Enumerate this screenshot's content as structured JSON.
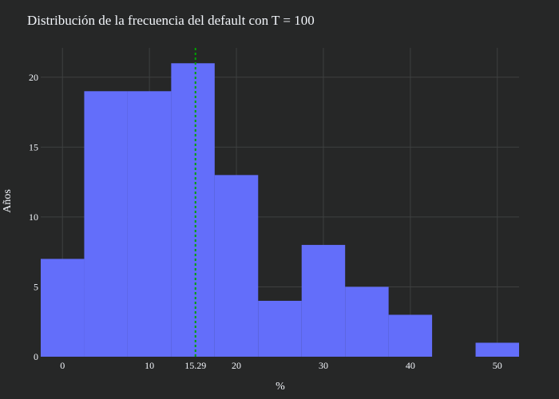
{
  "chart_data": {
    "type": "bar",
    "title": "Distribución de la frecuencia del default con T = 100",
    "xlabel": "%",
    "ylabel": "Años",
    "bin_width": 5,
    "bins": [
      {
        "x0": -2.5,
        "x1": 2.5,
        "value": 7
      },
      {
        "x0": 2.5,
        "x1": 7.5,
        "value": 19
      },
      {
        "x0": 7.5,
        "x1": 12.5,
        "value": 19
      },
      {
        "x0": 12.5,
        "x1": 17.5,
        "value": 21
      },
      {
        "x0": 17.5,
        "x1": 22.5,
        "value": 13
      },
      {
        "x0": 22.5,
        "x1": 27.5,
        "value": 4
      },
      {
        "x0": 27.5,
        "x1": 32.5,
        "value": 8
      },
      {
        "x0": 32.5,
        "x1": 37.5,
        "value": 5
      },
      {
        "x0": 37.5,
        "x1": 42.5,
        "value": 3
      },
      {
        "x0": 42.5,
        "x1": 47.5,
        "value": 0
      },
      {
        "x0": 47.5,
        "x1": 52.5,
        "value": 1
      }
    ],
    "xlim": [
      -2.5,
      52.5
    ],
    "ylim": [
      0,
      22.1
    ],
    "x_ticks": [
      0,
      10,
      20,
      30,
      40,
      50
    ],
    "y_ticks": [
      0,
      5,
      10,
      15,
      20
    ],
    "reference_line": {
      "x": 15.29,
      "label": "15.29",
      "color": "#00a000",
      "style": "dashed"
    },
    "bar_color": "#636efa",
    "grid": true
  }
}
